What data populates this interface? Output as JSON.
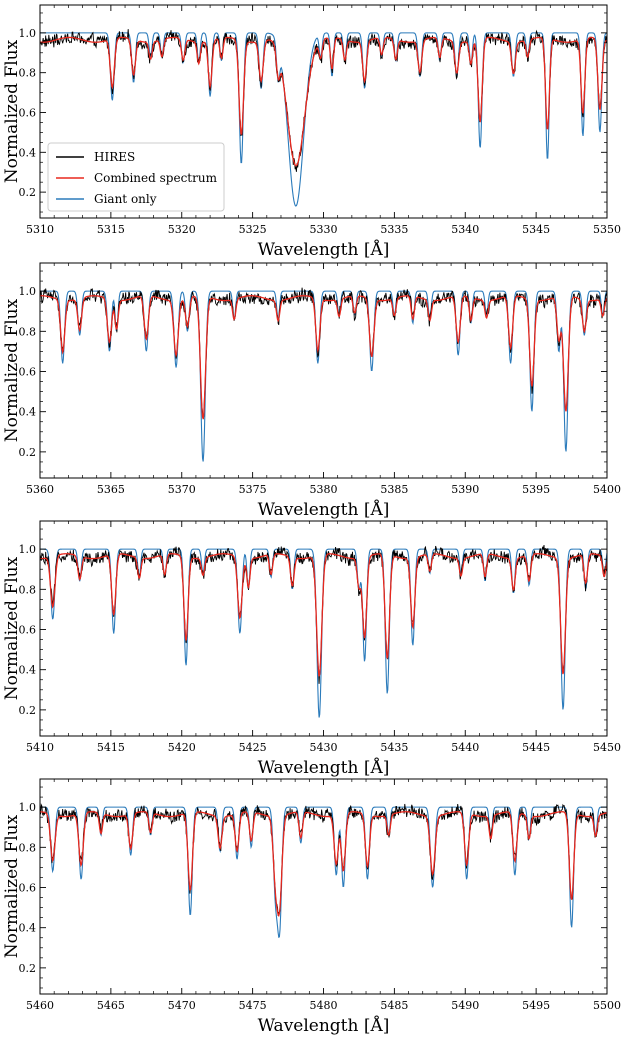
{
  "chart_data": [
    {
      "type": "line",
      "xlabel": "Wavelength [Å]",
      "ylabel": "Normalized Flux",
      "xlim": [
        5310,
        5350
      ],
      "ylim": [
        0.07,
        1.14
      ],
      "xticks": [
        5310,
        5315,
        5320,
        5325,
        5330,
        5335,
        5340,
        5345,
        5350
      ],
      "yticks": [
        0.2,
        0.4,
        0.6,
        0.8,
        1.0
      ],
      "legend": {
        "placement": "lower-left",
        "entries": [
          "HIRES",
          "Combined spectrum",
          "Giant only"
        ]
      },
      "lines": [
        {
          "center": 5315.1,
          "giant": 0.34,
          "width": 0.13
        },
        {
          "center": 5316.6,
          "giant": 0.25,
          "width": 0.12
        },
        {
          "center": 5317.8,
          "giant": 0.12,
          "width": 0.1
        },
        {
          "center": 5318.6,
          "giant": 0.12,
          "width": 0.1
        },
        {
          "center": 5320.1,
          "giant": 0.15,
          "width": 0.11
        },
        {
          "center": 5321.2,
          "giant": 0.15,
          "width": 0.1
        },
        {
          "center": 5322.0,
          "giant": 0.32,
          "width": 0.12
        },
        {
          "center": 5322.8,
          "giant": 0.14,
          "width": 0.1
        },
        {
          "center": 5324.2,
          "giant": 0.66,
          "width": 0.14
        },
        {
          "center": 5325.6,
          "giant": 0.28,
          "width": 0.13
        },
        {
          "center": 5326.8,
          "giant": 0.18,
          "width": 0.11
        },
        {
          "center": 5328.05,
          "giant": 0.87,
          "width": 0.55
        },
        {
          "center": 5329.8,
          "giant": 0.12,
          "width": 0.1
        },
        {
          "center": 5330.6,
          "giant": 0.22,
          "width": 0.1
        },
        {
          "center": 5331.5,
          "giant": 0.14,
          "width": 0.1
        },
        {
          "center": 5332.9,
          "giant": 0.28,
          "width": 0.12
        },
        {
          "center": 5334.1,
          "giant": 0.12,
          "width": 0.1
        },
        {
          "center": 5335.1,
          "giant": 0.14,
          "width": 0.1
        },
        {
          "center": 5336.8,
          "giant": 0.22,
          "width": 0.12
        },
        {
          "center": 5338.2,
          "giant": 0.14,
          "width": 0.1
        },
        {
          "center": 5339.4,
          "giant": 0.22,
          "width": 0.12
        },
        {
          "center": 5340.4,
          "giant": 0.16,
          "width": 0.1
        },
        {
          "center": 5341.05,
          "giant": 0.58,
          "width": 0.13
        },
        {
          "center": 5343.4,
          "giant": 0.22,
          "width": 0.12
        },
        {
          "center": 5344.4,
          "giant": 0.12,
          "width": 0.1
        },
        {
          "center": 5345.8,
          "giant": 0.64,
          "width": 0.12
        },
        {
          "center": 5348.3,
          "giant": 0.52,
          "width": 0.12
        },
        {
          "center": 5349.5,
          "giant": 0.5,
          "width": 0.13
        }
      ]
    },
    {
      "type": "line",
      "xlabel": "Wavelength [Å]",
      "ylabel": "Normalized Flux",
      "xlim": [
        5360,
        5400
      ],
      "ylim": [
        0.07,
        1.14
      ],
      "xticks": [
        5360,
        5365,
        5370,
        5375,
        5380,
        5385,
        5390,
        5395,
        5400
      ],
      "yticks": [
        0.2,
        0.4,
        0.6,
        0.8,
        1.0
      ],
      "lines": [
        {
          "center": 5361.6,
          "giant": 0.36,
          "width": 0.13
        },
        {
          "center": 5362.8,
          "giant": 0.22,
          "width": 0.12
        },
        {
          "center": 5364.9,
          "giant": 0.3,
          "width": 0.13
        },
        {
          "center": 5365.4,
          "giant": 0.2,
          "width": 0.1
        },
        {
          "center": 5367.5,
          "giant": 0.3,
          "width": 0.13
        },
        {
          "center": 5369.6,
          "giant": 0.38,
          "width": 0.14
        },
        {
          "center": 5370.4,
          "giant": 0.2,
          "width": 0.12
        },
        {
          "center": 5371.5,
          "giant": 0.85,
          "width": 0.16
        },
        {
          "center": 5373.7,
          "giant": 0.14,
          "width": 0.1
        },
        {
          "center": 5376.8,
          "giant": 0.14,
          "width": 0.1
        },
        {
          "center": 5379.6,
          "giant": 0.36,
          "width": 0.13
        },
        {
          "center": 5381.1,
          "giant": 0.12,
          "width": 0.1
        },
        {
          "center": 5382.2,
          "giant": 0.12,
          "width": 0.1
        },
        {
          "center": 5383.4,
          "giant": 0.4,
          "width": 0.14
        },
        {
          "center": 5385.0,
          "giant": 0.12,
          "width": 0.1
        },
        {
          "center": 5386.3,
          "giant": 0.16,
          "width": 0.1
        },
        {
          "center": 5387.5,
          "giant": 0.14,
          "width": 0.1
        },
        {
          "center": 5389.5,
          "giant": 0.32,
          "width": 0.13
        },
        {
          "center": 5390.4,
          "giant": 0.16,
          "width": 0.1
        },
        {
          "center": 5391.5,
          "giant": 0.12,
          "width": 0.1
        },
        {
          "center": 5393.2,
          "giant": 0.36,
          "width": 0.13
        },
        {
          "center": 5394.7,
          "giant": 0.6,
          "width": 0.14
        },
        {
          "center": 5396.6,
          "giant": 0.3,
          "width": 0.12
        },
        {
          "center": 5397.1,
          "giant": 0.8,
          "width": 0.15
        },
        {
          "center": 5398.4,
          "giant": 0.22,
          "width": 0.12
        },
        {
          "center": 5399.7,
          "giant": 0.12,
          "width": 0.1
        }
      ]
    },
    {
      "type": "line",
      "xlabel": "Wavelength [Å]",
      "ylabel": "Normalized Flux",
      "xlim": [
        5410,
        5450
      ],
      "ylim": [
        0.07,
        1.14
      ],
      "xticks": [
        5410,
        5415,
        5420,
        5425,
        5430,
        5435,
        5440,
        5445,
        5450
      ],
      "yticks": [
        0.2,
        0.4,
        0.6,
        0.8,
        1.0
      ],
      "lines": [
        {
          "center": 5410.9,
          "giant": 0.35,
          "width": 0.14
        },
        {
          "center": 5412.8,
          "giant": 0.16,
          "width": 0.11
        },
        {
          "center": 5415.2,
          "giant": 0.42,
          "width": 0.13
        },
        {
          "center": 5417.0,
          "giant": 0.14,
          "width": 0.1
        },
        {
          "center": 5418.8,
          "giant": 0.14,
          "width": 0.1
        },
        {
          "center": 5420.3,
          "giant": 0.58,
          "width": 0.13
        },
        {
          "center": 5421.5,
          "giant": 0.12,
          "width": 0.1
        },
        {
          "center": 5424.1,
          "giant": 0.42,
          "width": 0.14
        },
        {
          "center": 5424.7,
          "giant": 0.2,
          "width": 0.1
        },
        {
          "center": 5426.3,
          "giant": 0.14,
          "width": 0.1
        },
        {
          "center": 5427.8,
          "giant": 0.2,
          "width": 0.11
        },
        {
          "center": 5429.7,
          "giant": 0.84,
          "width": 0.16
        },
        {
          "center": 5432.5,
          "giant": 0.2,
          "width": 0.11
        },
        {
          "center": 5432.9,
          "giant": 0.56,
          "width": 0.13
        },
        {
          "center": 5434.5,
          "giant": 0.72,
          "width": 0.14
        },
        {
          "center": 5436.3,
          "giant": 0.48,
          "width": 0.13
        },
        {
          "center": 5437.5,
          "giant": 0.12,
          "width": 0.1
        },
        {
          "center": 5439.7,
          "giant": 0.12,
          "width": 0.1
        },
        {
          "center": 5441.4,
          "giant": 0.16,
          "width": 0.1
        },
        {
          "center": 5443.4,
          "giant": 0.22,
          "width": 0.11
        },
        {
          "center": 5444.5,
          "giant": 0.18,
          "width": 0.11
        },
        {
          "center": 5446.9,
          "giant": 0.8,
          "width": 0.15
        },
        {
          "center": 5448.5,
          "giant": 0.2,
          "width": 0.11
        },
        {
          "center": 5449.8,
          "giant": 0.14,
          "width": 0.1
        }
      ]
    },
    {
      "type": "line",
      "xlabel": "Wavelength [Å]",
      "ylabel": "Normalized Flux",
      "xlim": [
        5460,
        5500
      ],
      "ylim": [
        0.07,
        1.14
      ],
      "xticks": [
        5460,
        5465,
        5470,
        5475,
        5480,
        5485,
        5490,
        5495,
        5500
      ],
      "yticks": [
        0.2,
        0.4,
        0.6,
        0.8,
        1.0
      ],
      "lines": [
        {
          "center": 5460.9,
          "giant": 0.32,
          "width": 0.14
        },
        {
          "center": 5462.9,
          "giant": 0.36,
          "width": 0.14
        },
        {
          "center": 5464.3,
          "giant": 0.14,
          "width": 0.1
        },
        {
          "center": 5466.4,
          "giant": 0.24,
          "width": 0.12
        },
        {
          "center": 5467.8,
          "giant": 0.14,
          "width": 0.1
        },
        {
          "center": 5470.6,
          "giant": 0.54,
          "width": 0.14
        },
        {
          "center": 5472.7,
          "giant": 0.22,
          "width": 0.12
        },
        {
          "center": 5473.9,
          "giant": 0.26,
          "width": 0.12
        },
        {
          "center": 5474.9,
          "giant": 0.2,
          "width": 0.11
        },
        {
          "center": 5476.6,
          "giant": 0.4,
          "width": 0.14
        },
        {
          "center": 5476.9,
          "giant": 0.6,
          "width": 0.15
        },
        {
          "center": 5478.4,
          "giant": 0.18,
          "width": 0.11
        },
        {
          "center": 5480.9,
          "giant": 0.34,
          "width": 0.13
        },
        {
          "center": 5481.4,
          "giant": 0.4,
          "width": 0.13
        },
        {
          "center": 5483.1,
          "giant": 0.36,
          "width": 0.13
        },
        {
          "center": 5484.6,
          "giant": 0.14,
          "width": 0.1
        },
        {
          "center": 5487.7,
          "giant": 0.4,
          "width": 0.15
        },
        {
          "center": 5490.1,
          "giant": 0.36,
          "width": 0.13
        },
        {
          "center": 5491.8,
          "giant": 0.16,
          "width": 0.1
        },
        {
          "center": 5493.5,
          "giant": 0.34,
          "width": 0.13
        },
        {
          "center": 5494.5,
          "giant": 0.16,
          "width": 0.1
        },
        {
          "center": 5497.5,
          "giant": 0.6,
          "width": 0.14
        },
        {
          "center": 5499.2,
          "giant": 0.14,
          "width": 0.1
        }
      ]
    }
  ],
  "colors": {
    "hires": "#000000",
    "combined": "#e8281e",
    "giant": "#2b7bbb"
  }
}
